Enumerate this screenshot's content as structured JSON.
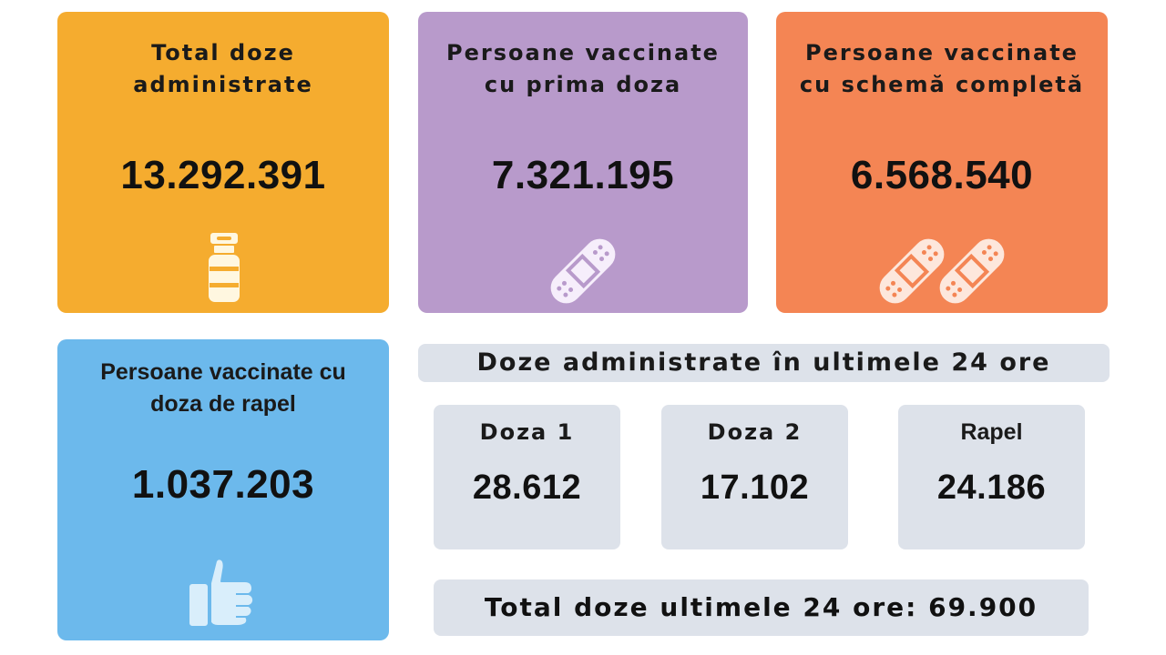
{
  "cards": {
    "total": {
      "title_line1": "Total doze",
      "title_line2": "administrate",
      "value": "13.292.391",
      "icon": "vaccine-vial-icon",
      "color": "#f5ac2f"
    },
    "first_dose": {
      "title_line1": "Persoane vaccinate",
      "title_line2": "cu prima doza",
      "value": "7.321.195",
      "icon": "bandage-icon",
      "color": "#b89acb"
    },
    "full_scheme": {
      "title_line1": "Persoane vaccinate",
      "title_line2": "cu schemă completă",
      "value": "6.568.540",
      "icon": "double-bandage-icon",
      "color": "#f48554"
    },
    "booster": {
      "title_line1": "Persoane vaccinate cu",
      "title_line2": "doza de rapel",
      "value": "1.037.203",
      "icon": "thumbs-up-icon",
      "color": "#6cb9ec"
    }
  },
  "last24": {
    "banner": "Doze administrate în ultimele 24 ore",
    "items": [
      {
        "label": "Doza 1",
        "value": "28.612"
      },
      {
        "label": "Doza 2",
        "value": "17.102"
      },
      {
        "label": "Rapel",
        "value": "24.186"
      }
    ],
    "total": "Total doze ultimele 24 ore: 69.900"
  }
}
